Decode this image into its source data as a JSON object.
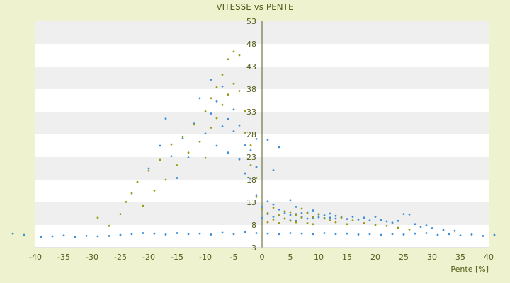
{
  "chart_data": {
    "type": "scatter",
    "title": "VITESSE vs PENTE",
    "xlabel": "Pente [%]",
    "ylabel": "",
    "xlim": [
      -40,
      40
    ],
    "ylim": [
      3,
      53
    ],
    "x_ticks": [
      -40,
      -35,
      -30,
      -25,
      -20,
      -15,
      -10,
      -5,
      0,
      5,
      10,
      15,
      20,
      25,
      30,
      35,
      40
    ],
    "y_ticks": [
      3,
      8,
      13,
      18,
      23,
      28,
      33,
      38,
      43,
      48,
      53
    ],
    "grid": "alternating horizontal bands",
    "legend": "none",
    "colors": {
      "background": "#eef2cf",
      "band_light": "#ffffff",
      "band_dark": "#efefef",
      "series_blue": "#3a8fd8",
      "series_olive": "#9a9a12",
      "axis": "#555c1a"
    },
    "series": [
      {
        "color": "#3a8fd8",
        "points": [
          [
            -44,
            6.1
          ],
          [
            -42,
            5.8
          ],
          [
            -39,
            5.4
          ],
          [
            -37,
            5.5
          ],
          [
            -35,
            5.7
          ],
          [
            -33,
            5.4
          ],
          [
            -31,
            5.6
          ],
          [
            -29,
            5.5
          ],
          [
            -27,
            5.6
          ],
          [
            -25,
            5.8
          ],
          [
            -23,
            6.0
          ],
          [
            -21,
            6.2
          ],
          [
            -19,
            6.1
          ],
          [
            -17,
            5.9
          ],
          [
            -15,
            6.2
          ],
          [
            -13,
            6.0
          ],
          [
            -11,
            6.1
          ],
          [
            -9,
            5.9
          ],
          [
            -7,
            6.3
          ],
          [
            -5,
            6.0
          ],
          [
            -3,
            6.4
          ],
          [
            -1,
            6.2
          ],
          [
            1,
            6.1
          ],
          [
            3,
            6.0
          ],
          [
            5,
            6.2
          ],
          [
            7,
            6.1
          ],
          [
            9,
            6.0
          ],
          [
            11,
            6.2
          ],
          [
            13,
            6.0
          ],
          [
            15,
            6.1
          ],
          [
            17,
            5.9
          ],
          [
            19,
            6.0
          ],
          [
            21,
            5.8
          ],
          [
            23,
            6.0
          ],
          [
            25,
            5.9
          ],
          [
            27,
            6.1
          ],
          [
            29,
            6.2
          ],
          [
            31,
            5.8
          ],
          [
            33,
            6.0
          ],
          [
            35,
            5.7
          ],
          [
            37,
            5.9
          ],
          [
            39,
            5.6
          ],
          [
            41,
            5.8
          ],
          [
            -20,
            20.5
          ],
          [
            -18,
            25.5
          ],
          [
            -17,
            31.5
          ],
          [
            -16,
            23.2
          ],
          [
            -15,
            18.4
          ],
          [
            -14,
            27.1
          ],
          [
            -13,
            22.9
          ],
          [
            -12,
            30.4
          ],
          [
            -11,
            36.0
          ],
          [
            -10,
            28.2
          ],
          [
            -9,
            40.1
          ],
          [
            -9,
            32.6
          ],
          [
            -8,
            25.5
          ],
          [
            -8,
            35.3
          ],
          [
            -7,
            29.8
          ],
          [
            -7,
            38.6
          ],
          [
            -6,
            31.4
          ],
          [
            -6,
            24.0
          ],
          [
            -5,
            33.5
          ],
          [
            -5,
            28.7
          ],
          [
            -4,
            30.0
          ],
          [
            -4,
            22.5
          ],
          [
            -3,
            25.6
          ],
          [
            -3,
            19.4
          ],
          [
            -2,
            18.3
          ],
          [
            -2,
            24.5
          ],
          [
            -1,
            14.6
          ],
          [
            -1,
            20.8
          ],
          [
            -1,
            27.0
          ],
          [
            0,
            12.0
          ],
          [
            0,
            9.5
          ],
          [
            1,
            13.2
          ],
          [
            1,
            10.4
          ],
          [
            1,
            26.8
          ],
          [
            2,
            12.5
          ],
          [
            2,
            9.8
          ],
          [
            2,
            20.1
          ],
          [
            3,
            11.4
          ],
          [
            3,
            10.1
          ],
          [
            3,
            25.2
          ],
          [
            4,
            10.6
          ],
          [
            4,
            9.4
          ],
          [
            5,
            10.2
          ],
          [
            5,
            9.0
          ],
          [
            5,
            13.5
          ],
          [
            6,
            10.4
          ],
          [
            6,
            8.9
          ],
          [
            6,
            12.0
          ],
          [
            7,
            9.8
          ],
          [
            7,
            10.6
          ],
          [
            8,
            9.4
          ],
          [
            8,
            10.8
          ],
          [
            9,
            9.6
          ],
          [
            9,
            11.2
          ],
          [
            10,
            9.7
          ],
          [
            10,
            10.3
          ],
          [
            11,
            9.5
          ],
          [
            11,
            10.1
          ],
          [
            12,
            9.6
          ],
          [
            12,
            10.5
          ],
          [
            13,
            9.4
          ],
          [
            13,
            10.0
          ],
          [
            14,
            9.7
          ],
          [
            15,
            9.3
          ],
          [
            16,
            9.8
          ],
          [
            17,
            9.2
          ],
          [
            18,
            9.6
          ],
          [
            19,
            9.0
          ],
          [
            20,
            9.8
          ],
          [
            21,
            9.1
          ],
          [
            22,
            8.8
          ],
          [
            23,
            8.5
          ],
          [
            24,
            8.9
          ],
          [
            25,
            10.4
          ],
          [
            26,
            10.3
          ],
          [
            27,
            8.2
          ],
          [
            28,
            7.6
          ],
          [
            29,
            7.9
          ],
          [
            30,
            7.3
          ],
          [
            32,
            6.9
          ],
          [
            34,
            6.7
          ]
        ]
      },
      {
        "color": "#9a9a12",
        "points": [
          [
            -29,
            9.6
          ],
          [
            -27,
            7.8
          ],
          [
            -25,
            10.4
          ],
          [
            -24,
            13.1
          ],
          [
            -23,
            15.0
          ],
          [
            -22,
            17.5
          ],
          [
            -21,
            12.2
          ],
          [
            -20,
            20.0
          ],
          [
            -19,
            15.6
          ],
          [
            -18,
            22.4
          ],
          [
            -17,
            18.0
          ],
          [
            -16,
            25.8
          ],
          [
            -15,
            21.2
          ],
          [
            -14,
            27.5
          ],
          [
            -13,
            24.0
          ],
          [
            -12,
            30.2
          ],
          [
            -11,
            26.4
          ],
          [
            -10,
            33.1
          ],
          [
            -10,
            22.8
          ],
          [
            -9,
            36.0
          ],
          [
            -9,
            29.5
          ],
          [
            -8,
            38.4
          ],
          [
            -8,
            31.6
          ],
          [
            -7,
            41.2
          ],
          [
            -7,
            34.5
          ],
          [
            -6,
            44.6
          ],
          [
            -6,
            36.8
          ],
          [
            -5,
            46.3
          ],
          [
            -5,
            39.2
          ],
          [
            -4,
            45.5
          ],
          [
            -4,
            37.6
          ],
          [
            -3,
            33.2
          ],
          [
            -3,
            28.4
          ],
          [
            -2,
            25.6
          ],
          [
            -2,
            21.2
          ],
          [
            -1,
            18.4
          ],
          [
            -1,
            14.2
          ],
          [
            0,
            11.5
          ],
          [
            1,
            10.6
          ],
          [
            1,
            8.6
          ],
          [
            2,
            9.2
          ],
          [
            2,
            11.8
          ],
          [
            3,
            10.1
          ],
          [
            3,
            8.4
          ],
          [
            4,
            11.0
          ],
          [
            4,
            9.4
          ],
          [
            5,
            10.8
          ],
          [
            5,
            8.9
          ],
          [
            6,
            10.2
          ],
          [
            6,
            8.6
          ],
          [
            7,
            11.6
          ],
          [
            7,
            9.6
          ],
          [
            8,
            10.6
          ],
          [
            8,
            8.4
          ],
          [
            9,
            9.8
          ],
          [
            9,
            8.2
          ],
          [
            10,
            10.4
          ],
          [
            11,
            9.4
          ],
          [
            12,
            9.0
          ],
          [
            13,
            8.6
          ],
          [
            14,
            9.6
          ],
          [
            15,
            8.2
          ],
          [
            16,
            9.0
          ],
          [
            18,
            8.4
          ],
          [
            20,
            8.0
          ],
          [
            22,
            7.8
          ],
          [
            24,
            7.4
          ],
          [
            26,
            7.0
          ]
        ]
      }
    ]
  }
}
